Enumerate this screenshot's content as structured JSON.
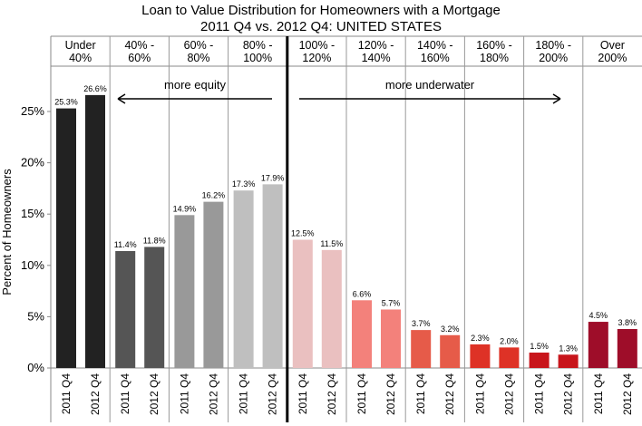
{
  "chart_data": {
    "type": "bar",
    "title": "Loan to Value Distribution for Homeowners with a Mortgage",
    "subtitle": "2011 Q4 vs. 2012 Q4:  UNITED STATES",
    "ylabel": "Percent of Homeowners",
    "ylim": [
      0,
      30
    ],
    "yticks": [
      "0%",
      "5%",
      "10%",
      "15%",
      "20%",
      "25%"
    ],
    "ytick_values": [
      0,
      5,
      10,
      15,
      20,
      25
    ],
    "grid": false,
    "groups": [
      {
        "label_lines": [
          "Under",
          "40%"
        ],
        "colors": [
          "#222222",
          "#222222"
        ]
      },
      {
        "label_lines": [
          "40% -",
          "60%"
        ],
        "colors": [
          "#555555",
          "#555555"
        ]
      },
      {
        "label_lines": [
          "60% -",
          "80%"
        ],
        "colors": [
          "#999999",
          "#999999"
        ]
      },
      {
        "label_lines": [
          "80% -",
          "100%"
        ],
        "colors": [
          "#bfbfbf",
          "#bfbfbf"
        ]
      },
      {
        "label_lines": [
          "100% -",
          "120%"
        ],
        "colors": [
          "#eac0c0",
          "#eac0c0"
        ]
      },
      {
        "label_lines": [
          "120% -",
          "140%"
        ],
        "colors": [
          "#f3817b",
          "#f3817b"
        ]
      },
      {
        "label_lines": [
          "140% -",
          "160%"
        ],
        "colors": [
          "#e65b49",
          "#e65b49"
        ]
      },
      {
        "label_lines": [
          "160% -",
          "180%"
        ],
        "colors": [
          "#de3226",
          "#de3226"
        ]
      },
      {
        "label_lines": [
          "180% -",
          "200%"
        ],
        "colors": [
          "#c8151b",
          "#c8151b"
        ]
      },
      {
        "label_lines": [
          "Over",
          "200%"
        ],
        "colors": [
          "#9e0d29",
          "#9e0d29"
        ]
      }
    ],
    "series": [
      {
        "name": "2011 Q4",
        "values": [
          25.3,
          11.4,
          14.9,
          17.3,
          12.5,
          6.6,
          3.7,
          2.3,
          1.5,
          4.5
        ]
      },
      {
        "name": "2012 Q4",
        "values": [
          26.6,
          11.8,
          16.2,
          17.9,
          11.5,
          5.7,
          3.2,
          2.0,
          1.3,
          3.8
        ]
      }
    ],
    "data_labels": [
      [
        "25.3%",
        "26.6%"
      ],
      [
        "11.4%",
        "11.8%"
      ],
      [
        "14.9%",
        "16.2%"
      ],
      [
        "17.3%",
        "17.9%"
      ],
      [
        "12.5%",
        "11.5%"
      ],
      [
        "6.6%",
        "5.7%"
      ],
      [
        "3.7%",
        "3.2%"
      ],
      [
        "2.3%",
        "2.0%"
      ],
      [
        "1.5%",
        "1.3%"
      ],
      [
        "4.5%",
        "3.8%"
      ]
    ],
    "annotations": [
      {
        "text": "more equity",
        "arrow": "left"
      },
      {
        "text": "more underwater",
        "arrow": "right"
      }
    ]
  }
}
